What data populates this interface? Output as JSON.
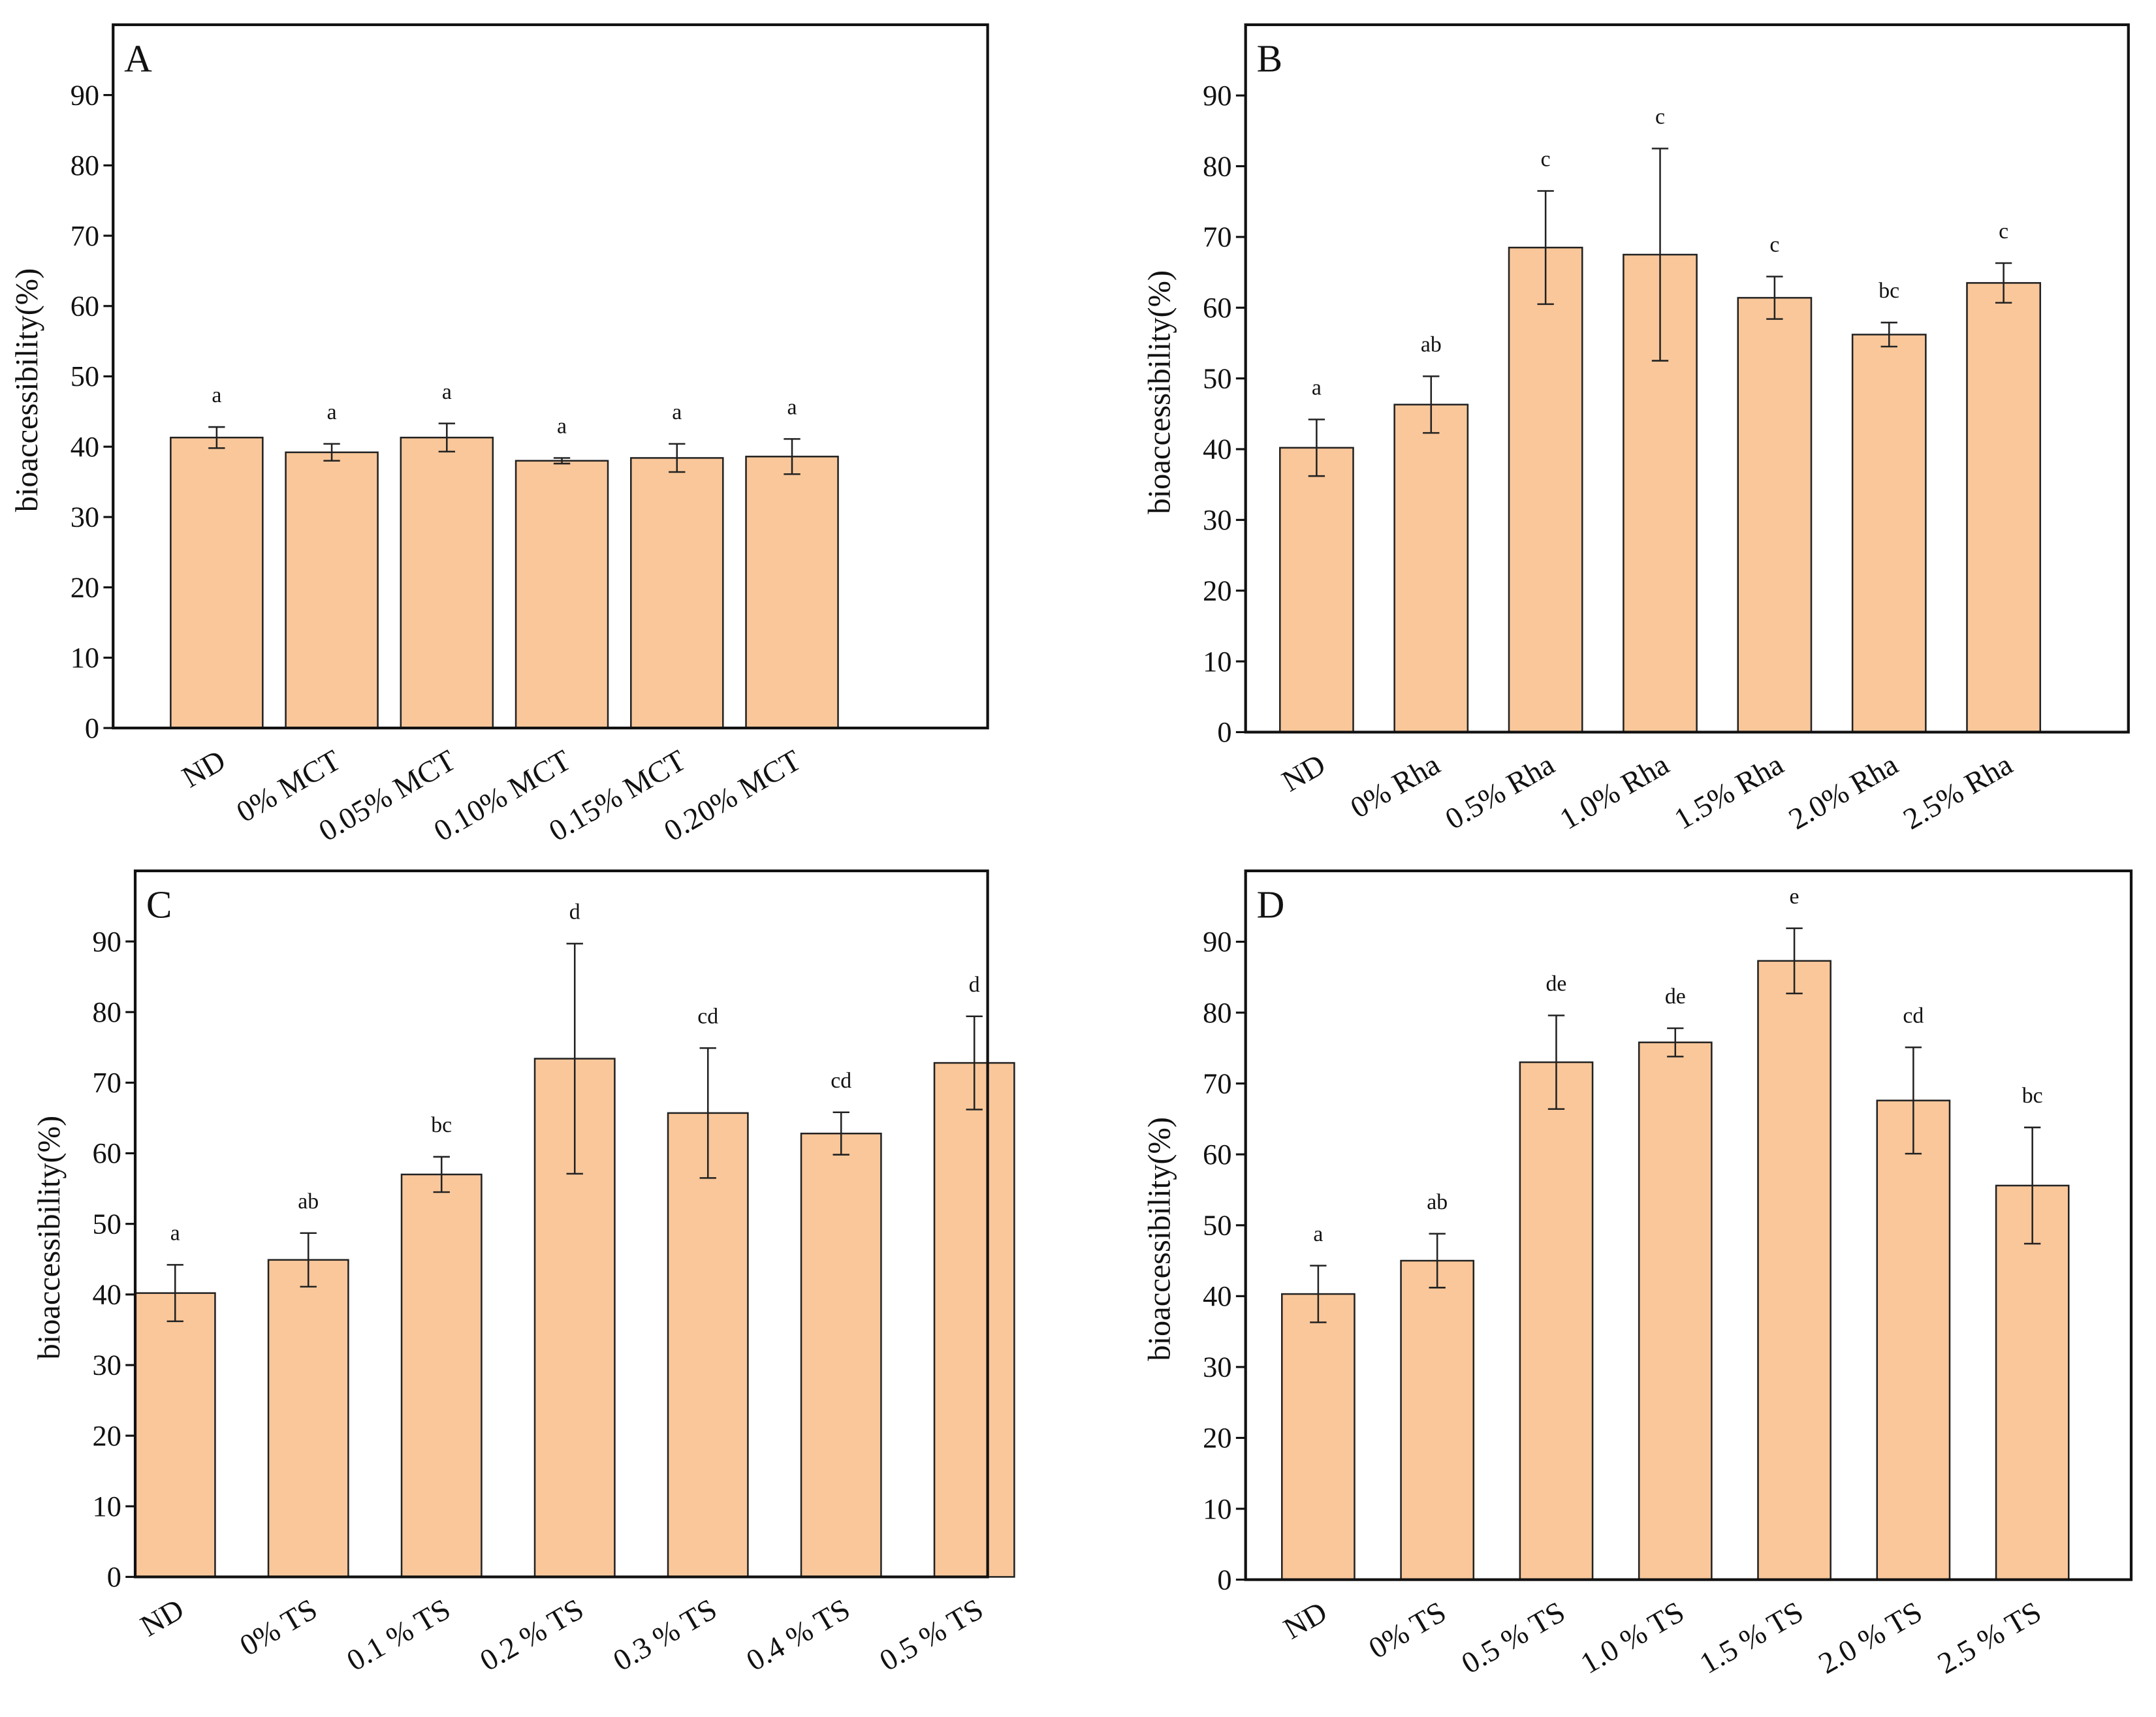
{
  "chart_data": [
    {
      "type": "bar",
      "panel": "A",
      "ylabel": "bioaccessibility(%)",
      "color": "#f9c79a",
      "ylim": [
        0,
        100
      ],
      "yticks": [
        0,
        10,
        20,
        30,
        40,
        50,
        60,
        70,
        80,
        90
      ],
      "categories": [
        "ND",
        "0% MCT",
        "0.05% MCT",
        "0.10% MCT",
        "0.15% MCT",
        "0.20% MCT"
      ],
      "values": [
        41.3,
        39.2,
        41.3,
        38.0,
        38.4,
        38.6
      ],
      "errors": [
        1.5,
        1.2,
        2.0,
        0.4,
        2.0,
        2.5
      ],
      "letters": [
        "a",
        "a",
        "a",
        "a",
        "a",
        "a"
      ]
    },
    {
      "type": "bar",
      "panel": "B",
      "ylabel": "bioaccessibility(%)",
      "color": "#f9c79a",
      "ylim": [
        0,
        100
      ],
      "yticks": [
        0,
        10,
        20,
        30,
        40,
        50,
        60,
        70,
        80,
        90
      ],
      "categories": [
        "ND",
        "0% Rha",
        "0.5% Rha",
        "1.0% Rha",
        "1.5% Rha",
        "2.0% Rha",
        "2.5% Rha"
      ],
      "values": [
        40.2,
        46.3,
        68.5,
        67.5,
        61.4,
        56.2,
        63.5
      ],
      "errors": [
        4.0,
        4.0,
        8.0,
        15.0,
        3.0,
        1.7,
        2.8
      ],
      "letters": [
        "a",
        "ab",
        "c",
        "c",
        "c",
        "bc",
        "c"
      ]
    },
    {
      "type": "bar",
      "panel": "C",
      "ylabel": "bioaccessibility(%)",
      "color": "#f9c79a",
      "ylim": [
        0,
        100
      ],
      "yticks": [
        0,
        10,
        20,
        30,
        40,
        50,
        60,
        70,
        80,
        90
      ],
      "categories": [
        "ND",
        "0%  TS",
        "0.1 % TS",
        "0.2 % TS",
        "0.3 % TS",
        "0.4 % TS",
        "0.5 % TS"
      ],
      "values": [
        40.2,
        44.9,
        57.0,
        73.4,
        65.7,
        62.8,
        72.8
      ],
      "errors": [
        4.0,
        3.8,
        2.5,
        16.3,
        9.2,
        3.0,
        6.6
      ],
      "letters": [
        "a",
        "ab",
        "bc",
        "d",
        "cd",
        "cd",
        "d"
      ]
    },
    {
      "type": "bar",
      "panel": "D",
      "ylabel": "bioaccessibility(%)",
      "color": "#f9c79a",
      "ylim": [
        0,
        100
      ],
      "yticks": [
        0,
        10,
        20,
        30,
        40,
        50,
        60,
        70,
        80,
        90
      ],
      "categories": [
        "ND",
        "0%  TS",
        "0.5 % TS",
        "1.0 % TS",
        "1.5 % TS",
        "2.0 % TS",
        "2.5 % TS"
      ],
      "values": [
        40.3,
        45.0,
        73.0,
        75.8,
        87.3,
        67.6,
        55.6
      ],
      "errors": [
        4.0,
        3.8,
        6.6,
        2.0,
        4.6,
        7.5,
        8.2
      ],
      "letters": [
        "a",
        "ab",
        "de",
        "de",
        "e",
        "cd",
        "bc"
      ]
    }
  ]
}
